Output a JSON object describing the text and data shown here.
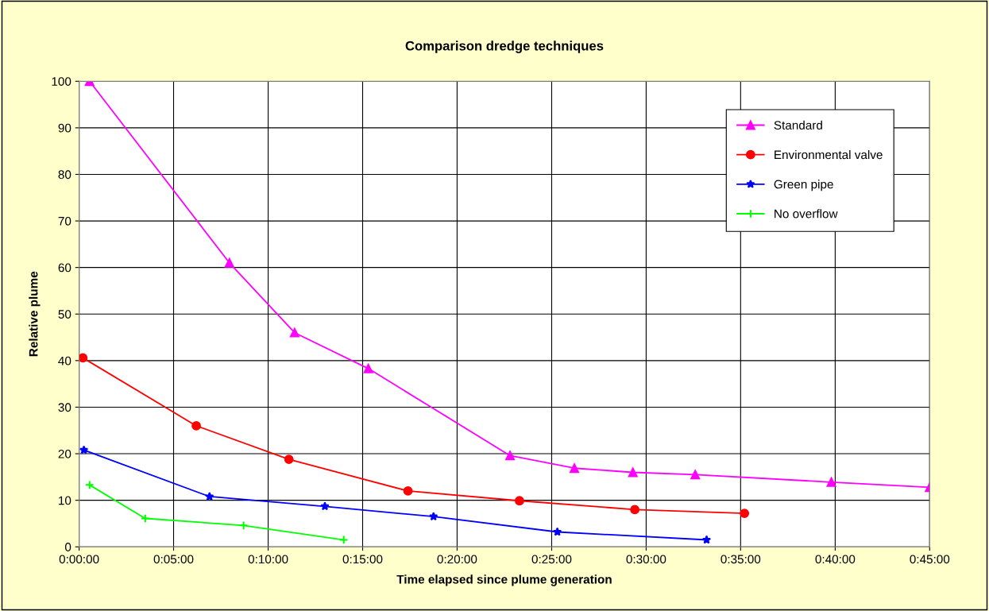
{
  "chart_data": {
    "type": "line",
    "title": "Comparison dredge techniques",
    "xlabel": "Time elapsed since plume generation",
    "ylabel": "Relative plume",
    "xlim": [
      0,
      0.75
    ],
    "ylim": [
      0,
      100
    ],
    "xticks": [
      {
        "value": 0,
        "label": "0:00:00"
      },
      {
        "value": 0.0833,
        "label": "0:05:00"
      },
      {
        "value": 0.1667,
        "label": "0:10:00"
      },
      {
        "value": 0.25,
        "label": "0:15:00"
      },
      {
        "value": 0.3333,
        "label": "0:20:00"
      },
      {
        "value": 0.4167,
        "label": "0:25:00"
      },
      {
        "value": 0.5,
        "label": "0:30:00"
      },
      {
        "value": 0.5833,
        "label": "0:35:00"
      },
      {
        "value": 0.6667,
        "label": "0:40:00"
      },
      {
        "value": 0.75,
        "label": "0:45:00"
      }
    ],
    "yticks": [
      0,
      10,
      20,
      30,
      40,
      50,
      60,
      70,
      80,
      90,
      100
    ],
    "grid": true,
    "legend": "top right",
    "series": [
      {
        "name": "Standard",
        "color": "#ff00ff",
        "marker": "triangle",
        "x": [
          0.0092,
          0.1325,
          0.19,
          0.255,
          0.38,
          0.4367,
          0.4883,
          0.5433,
          0.6633,
          0.75
        ],
        "values": [
          100,
          61,
          46,
          38.3,
          19.6,
          16.9,
          16,
          15.5,
          13.9,
          12.8
        ]
      },
      {
        "name": "Environmental valve",
        "color": "#ff0000",
        "marker": "circle",
        "x": [
          0.0033,
          0.1033,
          0.185,
          0.29,
          0.3883,
          0.49,
          0.5867
        ],
        "values": [
          40.6,
          26,
          18.8,
          12,
          9.9,
          8,
          7.2
        ]
      },
      {
        "name": "Green pipe",
        "color": "#0000ff",
        "marker": "star",
        "x": [
          0.0042,
          0.115,
          0.2167,
          0.3125,
          0.4217,
          0.5533
        ],
        "values": [
          20.8,
          10.8,
          8.7,
          6.5,
          3.2,
          1.5
        ]
      },
      {
        "name": "No overflow",
        "color": "#00ff00",
        "marker": "cross",
        "x": [
          0.0092,
          0.0583,
          0.145,
          0.2333
        ],
        "values": [
          13.3,
          6.1,
          4.6,
          1.5
        ]
      }
    ]
  }
}
